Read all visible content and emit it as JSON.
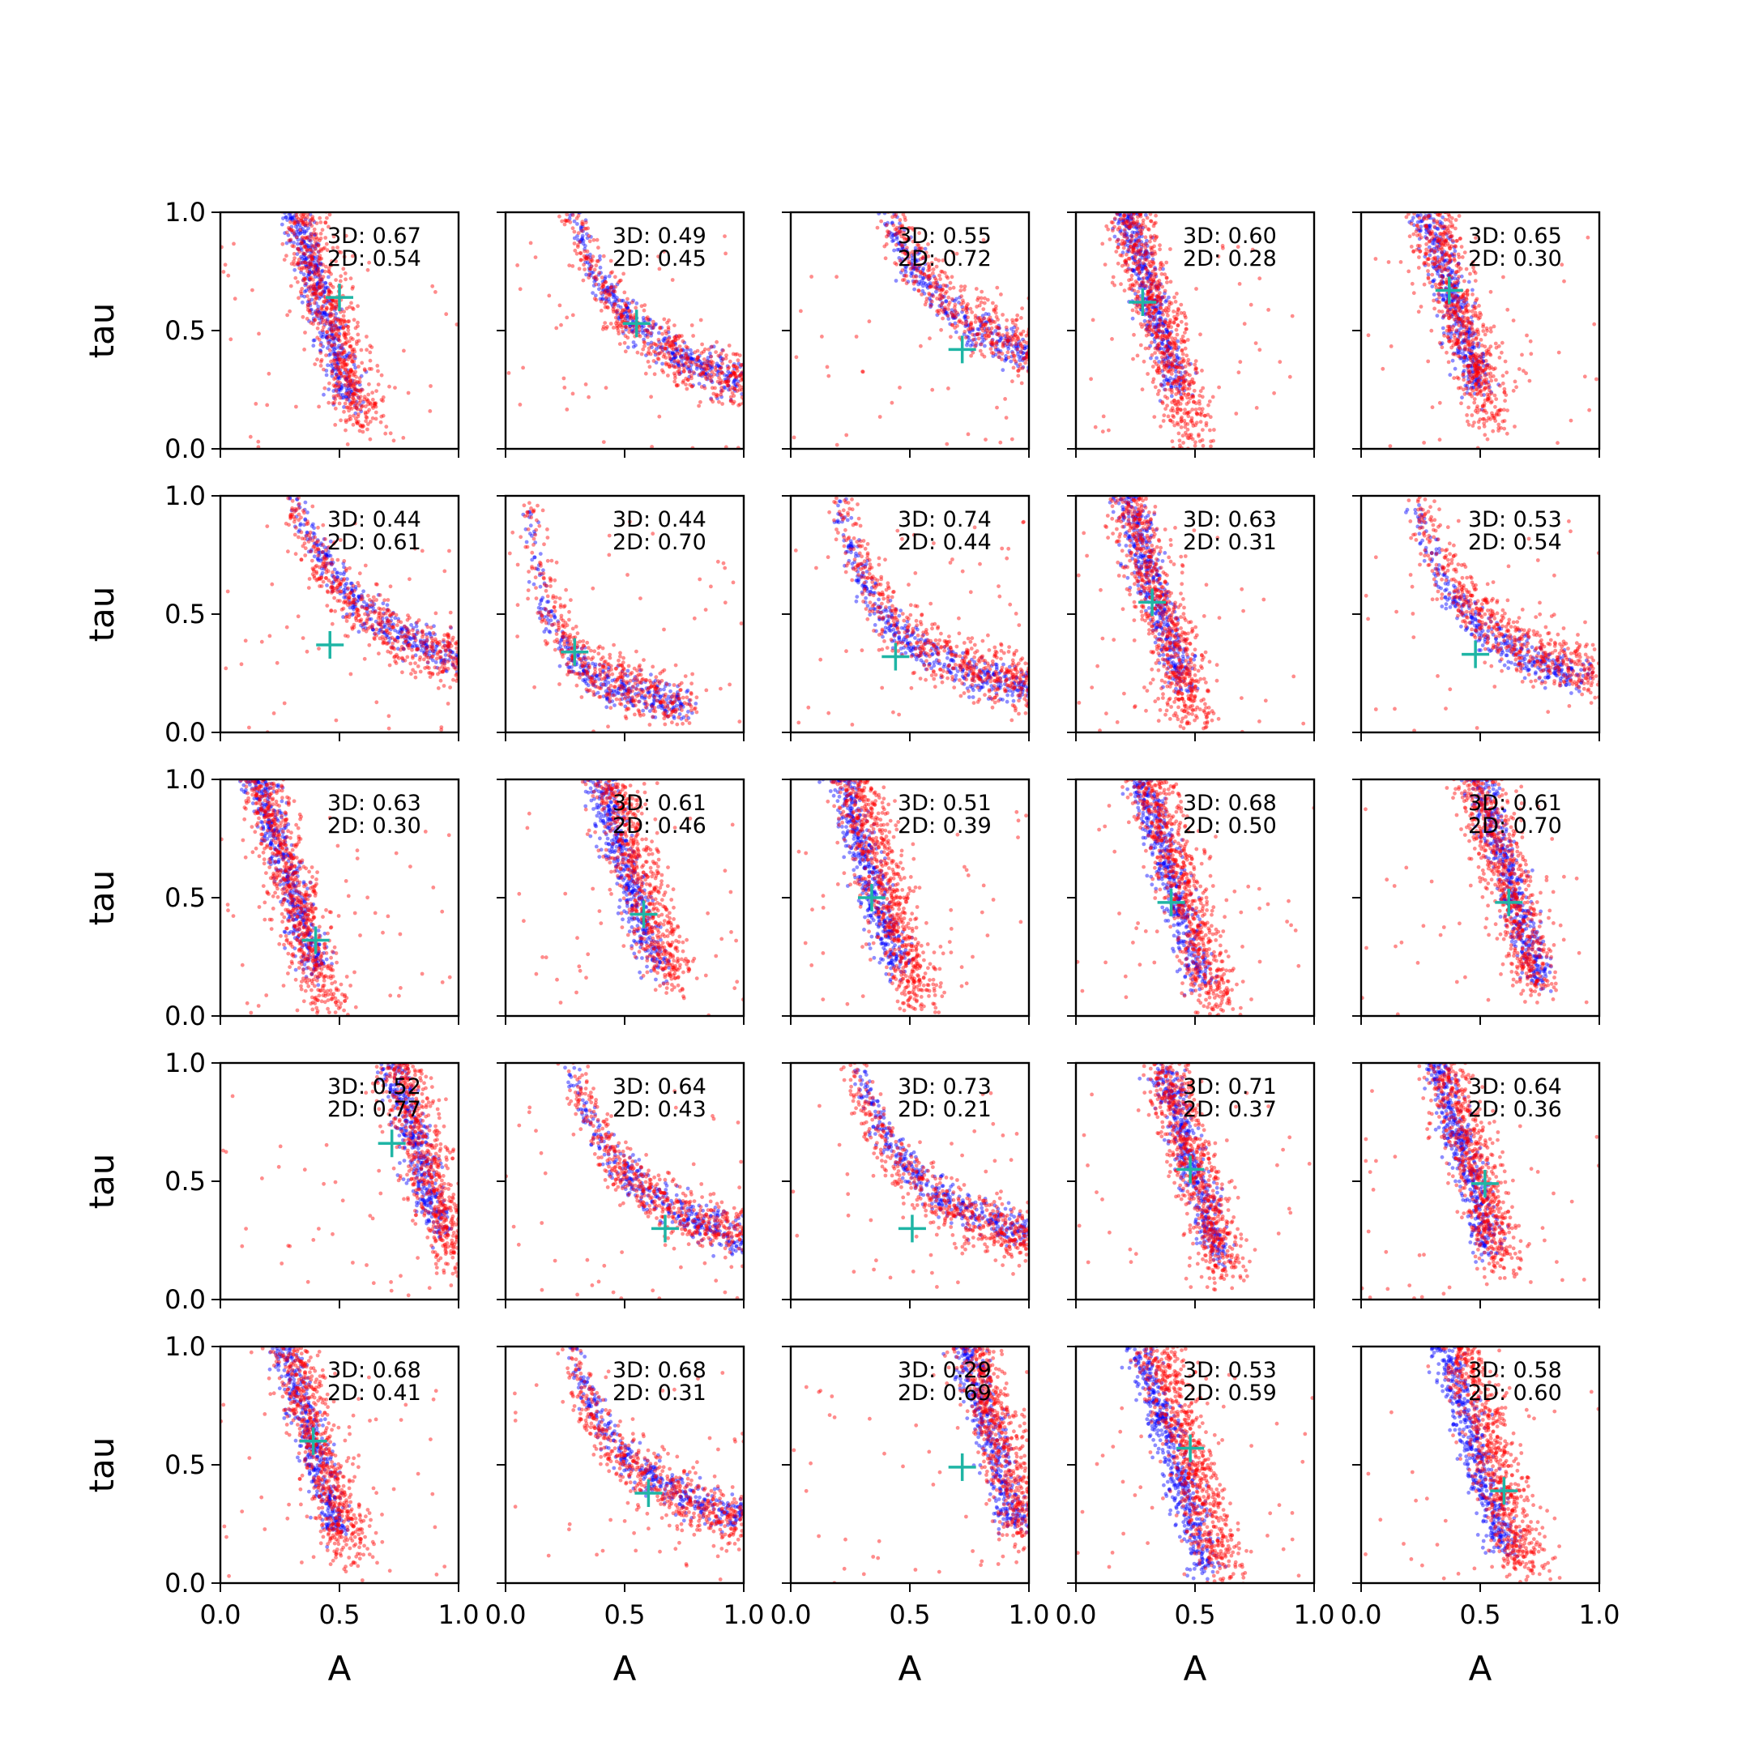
{
  "chart_data": {
    "type": "scatter",
    "layout": "5x5 grid of small-multiple scatter panels",
    "xlabel": "A",
    "ylabel": "tau",
    "xlim": [
      0,
      1
    ],
    "ylim": [
      0,
      1
    ],
    "xticks": [
      "0.0",
      "0.5",
      "1.0"
    ],
    "yticks": [
      "0.0",
      "0.5",
      "1.0"
    ],
    "grid": false,
    "colors": {
      "series_a": "#0000ff",
      "series_b": "#ff0000",
      "marker": "#1fb5a5"
    },
    "panels": [
      {
        "score_3d": "3D: 0.67",
        "score_2d": "2D: 0.54",
        "marker": [
          0.5,
          0.64
        ],
        "shape": "steep",
        "ax": 0.4,
        "ay": 0.7,
        "bx": 0.45,
        "by": 0.62
      },
      {
        "score_3d": "3D: 0.49",
        "score_2d": "2D: 0.45",
        "marker": [
          0.55,
          0.53
        ],
        "shape": "curve",
        "ax": 0.68,
        "ay": 0.42,
        "bx": 0.7,
        "by": 0.4
      },
      {
        "score_3d": "3D: 0.55",
        "score_2d": "2D: 0.72",
        "marker": [
          0.72,
          0.42
        ],
        "shape": "curve",
        "ax": 0.72,
        "ay": 0.55,
        "bx": 0.75,
        "by": 0.55
      },
      {
        "score_3d": "3D: 0.60",
        "score_2d": "2D: 0.28",
        "marker": [
          0.28,
          0.62
        ],
        "shape": "steep",
        "ax": 0.28,
        "ay": 0.75,
        "bx": 0.35,
        "by": 0.55
      },
      {
        "score_3d": "3D: 0.65",
        "score_2d": "2D: 0.30",
        "marker": [
          0.37,
          0.67
        ],
        "shape": "steep",
        "ax": 0.35,
        "ay": 0.75,
        "bx": 0.4,
        "by": 0.62
      },
      {
        "score_3d": "3D: 0.44",
        "score_2d": "2D: 0.61",
        "marker": [
          0.46,
          0.37
        ],
        "shape": "curve",
        "ax": 0.45,
        "ay": 0.7,
        "bx": 0.6,
        "by": 0.5
      },
      {
        "score_3d": "3D: 0.44",
        "score_2d": "2D: 0.70",
        "marker": [
          0.29,
          0.34
        ],
        "shape": "curve",
        "ax": 0.22,
        "ay": 0.4,
        "bx": 0.22,
        "by": 0.45
      },
      {
        "score_3d": "3D: 0.74",
        "score_2d": "2D: 0.44",
        "marker": [
          0.44,
          0.32
        ],
        "shape": "curve",
        "ax": 0.48,
        "ay": 0.4,
        "bx": 0.55,
        "by": 0.38
      },
      {
        "score_3d": "3D: 0.63",
        "score_2d": "2D: 0.31",
        "marker": [
          0.32,
          0.55
        ],
        "shape": "steep",
        "ax": 0.3,
        "ay": 0.7,
        "bx": 0.35,
        "by": 0.55
      },
      {
        "score_3d": "3D: 0.53",
        "score_2d": "2D: 0.54",
        "marker": [
          0.48,
          0.33
        ],
        "shape": "curve",
        "ax": 0.4,
        "ay": 0.55,
        "bx": 0.45,
        "by": 0.55
      },
      {
        "score_3d": "3D: 0.63",
        "score_2d": "2D: 0.30",
        "marker": [
          0.4,
          0.32
        ],
        "shape": "steep",
        "ax": 0.25,
        "ay": 0.7,
        "bx": 0.3,
        "by": 0.55
      },
      {
        "score_3d": "3D: 0.61",
        "score_2d": "2D: 0.46",
        "marker": [
          0.58,
          0.43
        ],
        "shape": "steep",
        "ax": 0.48,
        "ay": 0.7,
        "bx": 0.55,
        "by": 0.65
      },
      {
        "score_3d": "3D: 0.51",
        "score_2d": "2D: 0.39",
        "marker": [
          0.34,
          0.5
        ],
        "shape": "steep",
        "ax": 0.3,
        "ay": 0.7,
        "bx": 0.4,
        "by": 0.55
      },
      {
        "score_3d": "3D: 0.68",
        "score_2d": "2D: 0.50",
        "marker": [
          0.4,
          0.48
        ],
        "shape": "steep",
        "ax": 0.38,
        "ay": 0.65,
        "bx": 0.45,
        "by": 0.55
      },
      {
        "score_3d": "3D: 0.61",
        "score_2d": "2D: 0.70",
        "marker": [
          0.62,
          0.48
        ],
        "shape": "steep",
        "ax": 0.6,
        "ay": 0.65,
        "bx": 0.6,
        "by": 0.62
      },
      {
        "score_3d": "3D: 0.52",
        "score_2d": "2D: 0.77",
        "marker": [
          0.72,
          0.66
        ],
        "shape": "steep",
        "ax": 0.78,
        "ay": 0.8,
        "bx": 0.85,
        "by": 0.65
      },
      {
        "score_3d": "3D: 0.64",
        "score_2d": "2D: 0.43",
        "marker": [
          0.67,
          0.3
        ],
        "shape": "curve",
        "ax": 0.6,
        "ay": 0.45,
        "bx": 0.68,
        "by": 0.4
      },
      {
        "score_3d": "3D: 0.73",
        "score_2d": "2D: 0.21",
        "marker": [
          0.51,
          0.3
        ],
        "shape": "curve",
        "ax": 0.62,
        "ay": 0.45,
        "bx": 0.62,
        "by": 0.42
      },
      {
        "score_3d": "3D: 0.71",
        "score_2d": "2D: 0.37",
        "marker": [
          0.48,
          0.55
        ],
        "shape": "steep",
        "ax": 0.45,
        "ay": 0.7,
        "bx": 0.48,
        "by": 0.62
      },
      {
        "score_3d": "3D: 0.64",
        "score_2d": "2D: 0.36",
        "marker": [
          0.52,
          0.49
        ],
        "shape": "steep",
        "ax": 0.4,
        "ay": 0.72,
        "bx": 0.45,
        "by": 0.65
      },
      {
        "score_3d": "3D: 0.68",
        "score_2d": "2D: 0.41",
        "marker": [
          0.39,
          0.6
        ],
        "shape": "steep",
        "ax": 0.35,
        "ay": 0.72,
        "bx": 0.4,
        "by": 0.62
      },
      {
        "score_3d": "3D: 0.68",
        "score_2d": "2D: 0.31",
        "marker": [
          0.6,
          0.38
        ],
        "shape": "curve",
        "ax": 0.55,
        "ay": 0.5,
        "bx": 0.65,
        "by": 0.4
      },
      {
        "score_3d": "3D: 0.29",
        "score_2d": "2D: 0.69",
        "marker": [
          0.72,
          0.49
        ],
        "shape": "steep",
        "ax": 0.8,
        "ay": 0.75,
        "bx": 0.85,
        "by": 0.7
      },
      {
        "score_3d": "3D: 0.53",
        "score_2d": "2D: 0.59",
        "marker": [
          0.48,
          0.57
        ],
        "shape": "steep",
        "ax": 0.4,
        "ay": 0.55,
        "bx": 0.48,
        "by": 0.55
      },
      {
        "score_3d": "3D: 0.58",
        "score_2d": "2D: 0.60",
        "marker": [
          0.6,
          0.39
        ],
        "shape": "steep",
        "ax": 0.45,
        "ay": 0.65,
        "bx": 0.55,
        "by": 0.55
      }
    ]
  }
}
